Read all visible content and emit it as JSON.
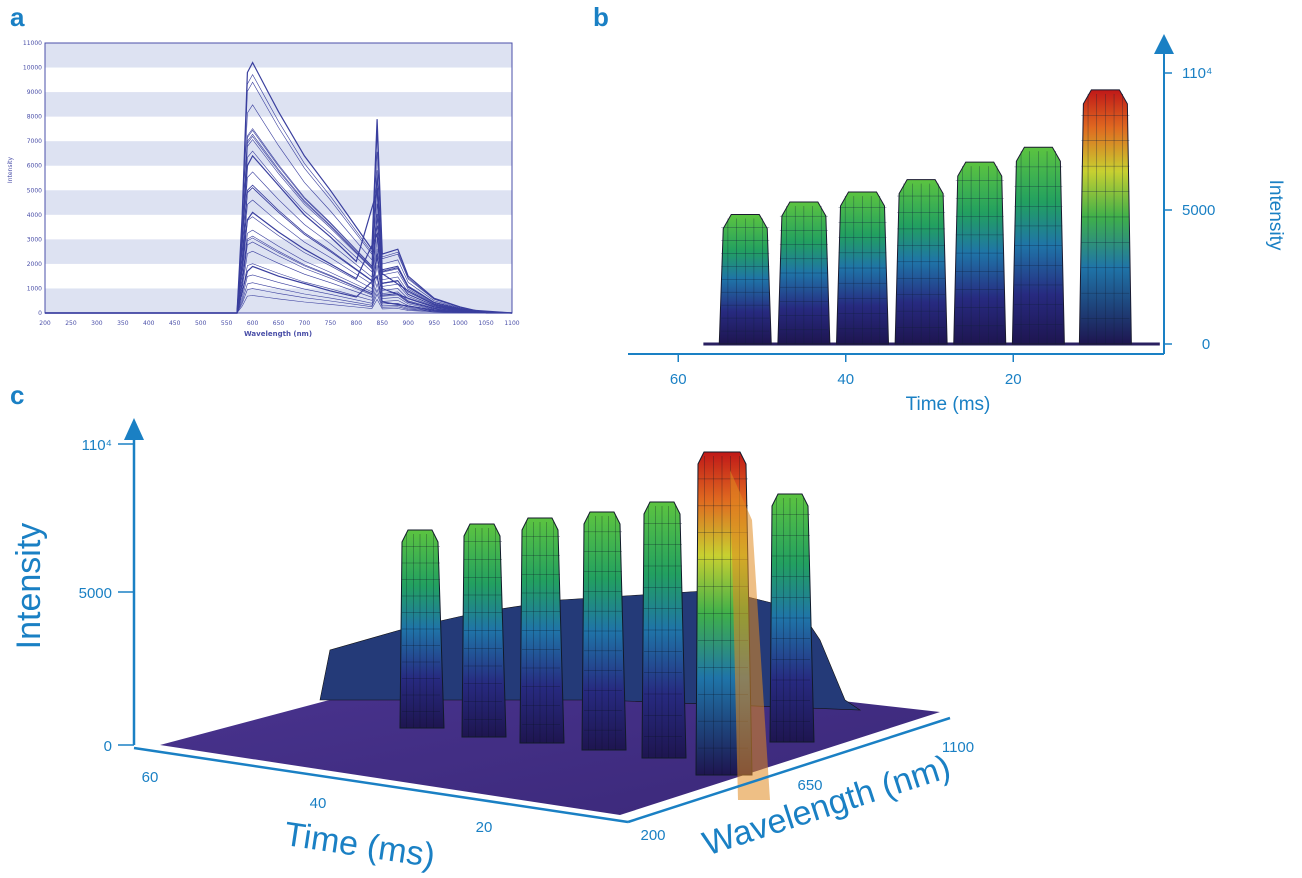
{
  "chart_data": [
    {
      "panel": "a",
      "type": "line",
      "xlabel": "Wavelength (nm)",
      "ylabel": "Intensity",
      "xlim": [
        200,
        1100
      ],
      "ylim": [
        0,
        11000
      ],
      "x_ticks": [
        "200",
        "250",
        "300",
        "350",
        "400",
        "450",
        "500",
        "550",
        "600",
        "650",
        "700",
        "750",
        "800",
        "850",
        "900",
        "950",
        "1000",
        "1050",
        "1100"
      ],
      "y_ticks": [
        "0",
        "1000",
        "2000",
        "3000",
        "4000",
        "5000",
        "6000",
        "7000",
        "8000",
        "9000",
        "10000",
        "11000"
      ],
      "grid": "horizontal bands",
      "series": [
        {
          "x": [
            200,
            570,
            580,
            590,
            600,
            630,
            650,
            700,
            750,
            800,
            830,
            840,
            850,
            880,
            900,
            950,
            1000,
            1050,
            1100
          ],
          "values": [
            0,
            0,
            4000,
            9800,
            10200,
            9000,
            8200,
            6400,
            5000,
            3500,
            2600,
            7900,
            2400,
            2600,
            1500,
            600,
            250,
            0,
            0
          ]
        },
        {
          "x": [
            200,
            570,
            590,
            600,
            650,
            700,
            750,
            800,
            840,
            850,
            900,
            950,
            1000,
            1100
          ],
          "values": [
            0,
            0,
            6000,
            6400,
            5200,
            4000,
            3100,
            2100,
            5000,
            1600,
            900,
            350,
            150,
            0
          ]
        },
        {
          "x": [
            200,
            570,
            590,
            600,
            650,
            700,
            750,
            800,
            840,
            850,
            900,
            950,
            1000,
            1100
          ],
          "values": [
            0,
            0,
            3800,
            4100,
            3300,
            2600,
            2000,
            1400,
            3200,
            1000,
            600,
            250,
            100,
            0
          ]
        },
        {
          "x": [
            200,
            570,
            590,
            600,
            650,
            700,
            750,
            800,
            840,
            850,
            900,
            950,
            1000,
            1100
          ],
          "values": [
            0,
            0,
            1700,
            1900,
            1500,
            1200,
            900,
            650,
            1500,
            450,
            280,
            120,
            50,
            0
          ]
        }
      ]
    },
    {
      "panel": "b",
      "type": "area",
      "xlabel": "Time (ms)",
      "ylabel": "Intensity",
      "x_ticks": [
        "60",
        "40",
        "20"
      ],
      "y_ticks": [
        "0",
        "5000",
        "110⁴"
      ],
      "x_reversed": true,
      "xlim": [
        66,
        2
      ],
      "ylim": [
        0,
        11000
      ],
      "pulses": [
        {
          "t": 52,
          "peak": 5200
        },
        {
          "t": 45,
          "peak": 5700
        },
        {
          "t": 38,
          "peak": 6100
        },
        {
          "t": 31,
          "peak": 6600
        },
        {
          "t": 24,
          "peak": 7300
        },
        {
          "t": 17,
          "peak": 7900
        },
        {
          "t": 9,
          "peak": 10200
        }
      ]
    },
    {
      "panel": "c",
      "type": "surface",
      "xlabel": "Time (ms)",
      "ylabel": "Intensity",
      "zlabel": "Wavelength (nm)",
      "x_ticks": [
        "60",
        "40",
        "20"
      ],
      "y_ticks": [
        "0",
        "5000",
        "110⁴"
      ],
      "wavelength_ticks": [
        "200",
        "650",
        "1100"
      ],
      "pulses": [
        {
          "t": 52,
          "peak": 5200
        },
        {
          "t": 45,
          "peak": 5700
        },
        {
          "t": 38,
          "peak": 6100
        },
        {
          "t": 31,
          "peak": 6600
        },
        {
          "t": 24,
          "peak": 7300
        },
        {
          "t": 17,
          "peak": 7900
        },
        {
          "t": 9,
          "peak": 10200
        }
      ]
    }
  ],
  "panels": {
    "a": {
      "letter": "a"
    },
    "b": {
      "letter": "b"
    },
    "c": {
      "letter": "c"
    }
  }
}
